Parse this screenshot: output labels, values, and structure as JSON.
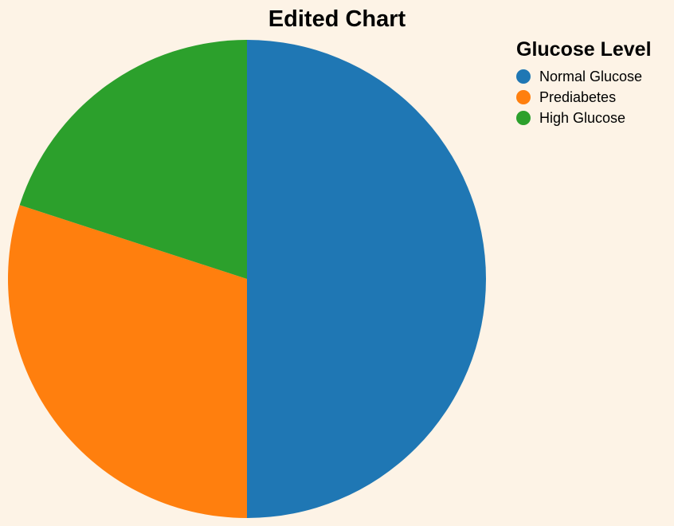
{
  "chart_data": {
    "type": "pie",
    "title": "Edited Chart",
    "legend_title": "Glucose Level",
    "legend_position": "top-right",
    "categories": [
      "Normal Glucose",
      "Prediabetes",
      "High Glucose"
    ],
    "values": [
      50,
      30,
      20
    ],
    "colors": [
      "#1f77b4",
      "#ff7f0e",
      "#2ca02c"
    ]
  }
}
